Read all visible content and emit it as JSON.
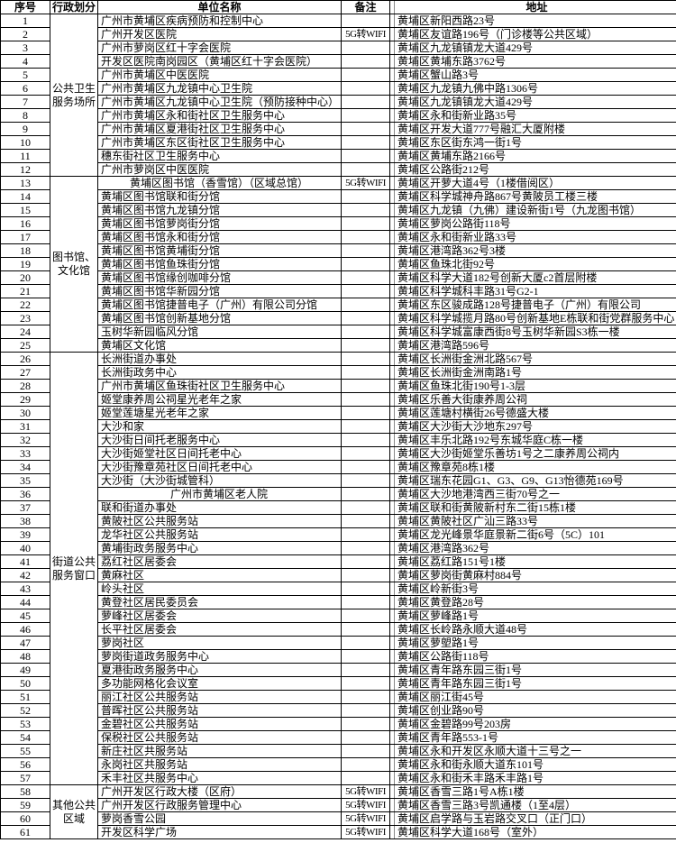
{
  "table": {
    "columns": [
      {
        "label": "序号"
      },
      {
        "label": "行政划分"
      },
      {
        "label": "单位名称"
      },
      {
        "label": "备注"
      },
      {
        "label": "地址"
      }
    ],
    "sections": [
      {
        "division": "公共卫生\n服务场所",
        "rows": [
          {
            "num": "1",
            "name": "广州市黄埔区疾病预防和控制中心",
            "remark": "",
            "address": "黄埔区新阳西路23号"
          },
          {
            "num": "2",
            "name": "广州开发区医院",
            "remark": "5G转WIFI",
            "address": "黄埔区友谊路196号（门诊楼等公共区域）"
          },
          {
            "num": "3",
            "name": "广州市萝岗区红十字会医院",
            "remark": "",
            "address": "黄埔区九龙镇镇龙大道429号"
          },
          {
            "num": "4",
            "name": "开发区医院南岗园区（黄埔区红十字会医院）",
            "remark": "",
            "address": "黄埔区黄埔东路3762号"
          },
          {
            "num": "5",
            "name": "广州市黄埔区中医医院",
            "remark": "",
            "address": "黄埔区蟹山路3号"
          },
          {
            "num": "6",
            "name": "广州市黄埔区九龙镇中心卫生院",
            "remark": "",
            "address": "黄埔区九龙镇九佛中路1306号"
          },
          {
            "num": "7",
            "name": "广州市黄埔区九龙镇中心卫生院（预防接种中心）",
            "remark": "",
            "address": "黄埔区九龙镇镇龙大道429号"
          },
          {
            "num": "8",
            "name": "广州市黄埔区永和街社区卫生服务中心",
            "remark": "",
            "address": "黄埔区永和街新业路35号"
          },
          {
            "num": "9",
            "name": "广州市黄埔区夏港街社区卫生服务中心",
            "remark": "",
            "address": "黄埔区开发大道777号融汇大厦附楼"
          },
          {
            "num": "10",
            "name": "广州市黄埔区东区街社区卫生服务中心",
            "remark": "",
            "address": "黄埔区东区街东鸿一街1号"
          },
          {
            "num": "11",
            "name": "穗东街社区卫生服务中心",
            "remark": "",
            "address": "黄埔区黄埔东路2166号"
          },
          {
            "num": "12",
            "name": "广州市萝岗区中医医院",
            "remark": "",
            "address": "黄埔区公路街212号"
          }
        ]
      },
      {
        "division": "图书馆、\n文化馆",
        "rows": [
          {
            "num": "13",
            "name": "黄埔区图书馆（香雪馆）（区域总馆）",
            "center": true,
            "remark": "5G转WIFI",
            "address": "黄埔区开萝大道4号（1楼借阅区）"
          },
          {
            "num": "14",
            "name": "黄埔区图书馆联和街分馆",
            "remark": "",
            "address": "黄埔区科学城神舟路867号黄陂员工楼三楼"
          },
          {
            "num": "15",
            "name": "黄埔区图书馆九龙镇分馆",
            "remark": "",
            "address": "黄埔区九龙镇（九佛）建设新街1号（九龙图书馆）"
          },
          {
            "num": "16",
            "name": "黄埔区图书馆萝岗街分馆",
            "remark": "",
            "address": "黄埔区萝岗公路街118号"
          },
          {
            "num": "17",
            "name": "黄埔区图书馆永和街分馆",
            "remark": "",
            "address": "黄埔区永和街新业路33号"
          },
          {
            "num": "18",
            "name": "黄埔区图书馆黄埔街分馆",
            "remark": "",
            "address": "黄埔区港湾路362号3楼"
          },
          {
            "num": "19",
            "name": "黄埔区图书馆鱼珠街分馆",
            "remark": "",
            "address": "黄埔区鱼珠北街92号"
          },
          {
            "num": "20",
            "name": "黄埔区图书馆缘创咖啡分馆",
            "remark": "",
            "address": "黄埔区科学大道182号创新大厦c2首层附楼"
          },
          {
            "num": "21",
            "name": "黄埔区图书馆华新园分馆",
            "remark": "",
            "address": "黄埔区科学城科丰路31号G2-1"
          },
          {
            "num": "22",
            "name": "黄埔区图书馆捷普电子（广州）有限公司分馆",
            "remark": "",
            "address": "黄埔区东区骏成路128号捷普电子（广州）有限公司"
          },
          {
            "num": "23",
            "name": "黄埔区图书馆创新基地分馆",
            "remark": "",
            "address": "黄埔区科学城揽月路80号创新基地E栋联和街党群服务中心"
          },
          {
            "num": "24",
            "name": "玉树华新园临风分馆",
            "remark": "",
            "address": "黄埔区科学城富康西街8号玉树华新园S3栋一楼"
          },
          {
            "num": "25",
            "name": "黄埔区文化馆",
            "remark": "",
            "address": "黄埔区港湾路596号"
          }
        ]
      },
      {
        "division": "街道公共\n服务窗口",
        "rows": [
          {
            "num": "26",
            "name": "长洲街道办事处",
            "remark": "",
            "address": "黄埔区长洲街金洲北路567号"
          },
          {
            "num": "27",
            "name": "长洲街政务中心",
            "remark": "",
            "address": "黄埔区长洲街金洲南路1号"
          },
          {
            "num": "28",
            "name": "广州市黄埔区鱼珠街社区卫生服务中心",
            "remark": "",
            "address": "黄埔区鱼珠北街190号1-3层"
          },
          {
            "num": "29",
            "name": "姬堂康养周公祠星光老年之家",
            "remark": "",
            "address": "黄埔区乐善大街康养周公祠"
          },
          {
            "num": "30",
            "name": "姬堂莲塘星光老年之家",
            "remark": "",
            "address": "黄埔区莲塘村横街26号德盛大楼"
          },
          {
            "num": "31",
            "name": "大沙和家",
            "remark": "",
            "address": "黄埔区大沙街大沙地东297号"
          },
          {
            "num": "32",
            "name": "大沙街日间托老服务中心",
            "remark": "",
            "address": "黄埔区丰乐北路192号东城华庭C栋一楼"
          },
          {
            "num": "33",
            "name": "大沙街姬堂社区日间托老中心",
            "remark": "",
            "address": "黄埔区大沙街姬堂乐善坊1号之二康养周公祠内"
          },
          {
            "num": "34",
            "name": "大沙街豫章苑社区日间托老中心",
            "remark": "",
            "address": "黄埔区豫章苑8栋1楼"
          },
          {
            "num": "35",
            "name": "大沙街（大沙街城管科）",
            "remark": "",
            "address": "黄埔区瑞东花园G1、G3、G9、G13怡德苑169号"
          },
          {
            "num": "36",
            "name": "广州市黄埔区老人院",
            "center": true,
            "remark": "",
            "address": "黄埔区大沙地港湾西三街70号之一"
          },
          {
            "num": "37",
            "name": "联和街道办事处",
            "remark": "",
            "address": "黄埔区联和街黄陂新村东二街15栋1楼"
          },
          {
            "num": "38",
            "name": "黄陂社区公共服务站",
            "remark": "",
            "address": "黄埔区黄陂社区广汕三路33号"
          },
          {
            "num": "39",
            "name": "龙华社区公共服务站",
            "remark": "",
            "address": "黄埔区龙光峰景华庭景新二街6号（5C）101"
          },
          {
            "num": "40",
            "name": "黄埔街政务服务中心",
            "remark": "",
            "address": "黄埔区港湾路362号"
          },
          {
            "num": "41",
            "name": "荔红社区居委会",
            "remark": "",
            "address": "黄埔区荔红路151号1楼"
          },
          {
            "num": "42",
            "name": "黄麻社区",
            "remark": "",
            "address": "黄埔区萝岗街黄麻村884号"
          },
          {
            "num": "43",
            "name": "岭头社区",
            "remark": "",
            "address": "黄埔区岭新街3号"
          },
          {
            "num": "44",
            "name": "黄登社区居民委员会",
            "remark": "",
            "address": "黄埔区黄登路28号"
          },
          {
            "num": "45",
            "name": "萝峰社区居委会",
            "remark": "",
            "address": "黄埔区萝峰路1号"
          },
          {
            "num": "46",
            "name": "长平社区居委会",
            "remark": "",
            "address": "黄埔区长岭路永顺大道48号"
          },
          {
            "num": "47",
            "name": "萝岗社区",
            "remark": "",
            "address": "黄埔区萝塱路1号"
          },
          {
            "num": "48",
            "name": "萝岗街道政务服务中心",
            "remark": "",
            "address": "黄埔区公路街118号"
          },
          {
            "num": "49",
            "name": "夏港街政务服务中心",
            "remark": "",
            "address": "黄埔区青年路东园三街1号"
          },
          {
            "num": "50",
            "name": "多功能网格化会议室",
            "remark": "",
            "address": "黄埔区青年路东园三街1号"
          },
          {
            "num": "51",
            "name": "丽江社区公共服务站",
            "remark": "",
            "address": "黄埔区丽江街45号"
          },
          {
            "num": "52",
            "name": "普晖社区公共服务站",
            "remark": "",
            "address": "黄埔区创业路90号"
          },
          {
            "num": "53",
            "name": "金碧社区公共服务站",
            "remark": "",
            "address": "黄埔区金碧路99号203房"
          },
          {
            "num": "54",
            "name": "保税社区公共服务站",
            "remark": "",
            "address": "黄埔区青年路553-1号"
          },
          {
            "num": "55",
            "name": "新庄社区共服务站",
            "remark": "",
            "address": "黄埔区永和开发区永顺大道十三号之一"
          },
          {
            "num": "56",
            "name": "永岗社区共服务站",
            "remark": "",
            "address": "黄埔区永和街永顺大道东101号"
          },
          {
            "num": "57",
            "name": "禾丰社区共服务中心",
            "remark": "",
            "address": "黄埔区永和街禾丰路禾丰路1号"
          }
        ]
      },
      {
        "division": "其他公共\n区域",
        "rows": [
          {
            "num": "58",
            "name": "广州开发区行政大楼（区府）",
            "remark": "5G转WIFI",
            "address": "黄埔区香雪三路1号A栋1楼"
          },
          {
            "num": "59",
            "name": "广州开发区行政服务管理中心",
            "remark": "5G转WIFI",
            "address": "黄埔区香雪三路3号凯通楼（1至4层）"
          },
          {
            "num": "60",
            "name": "萝岗香雪公园",
            "remark": "5G转WIFI",
            "address": "黄埔区启学路与玉岩路交叉口（正门口）"
          },
          {
            "num": "61",
            "name": "开发区科学广场",
            "remark": "5G转WIFI",
            "address": "黄埔区科学大道168号（室外）"
          }
        ]
      }
    ]
  }
}
